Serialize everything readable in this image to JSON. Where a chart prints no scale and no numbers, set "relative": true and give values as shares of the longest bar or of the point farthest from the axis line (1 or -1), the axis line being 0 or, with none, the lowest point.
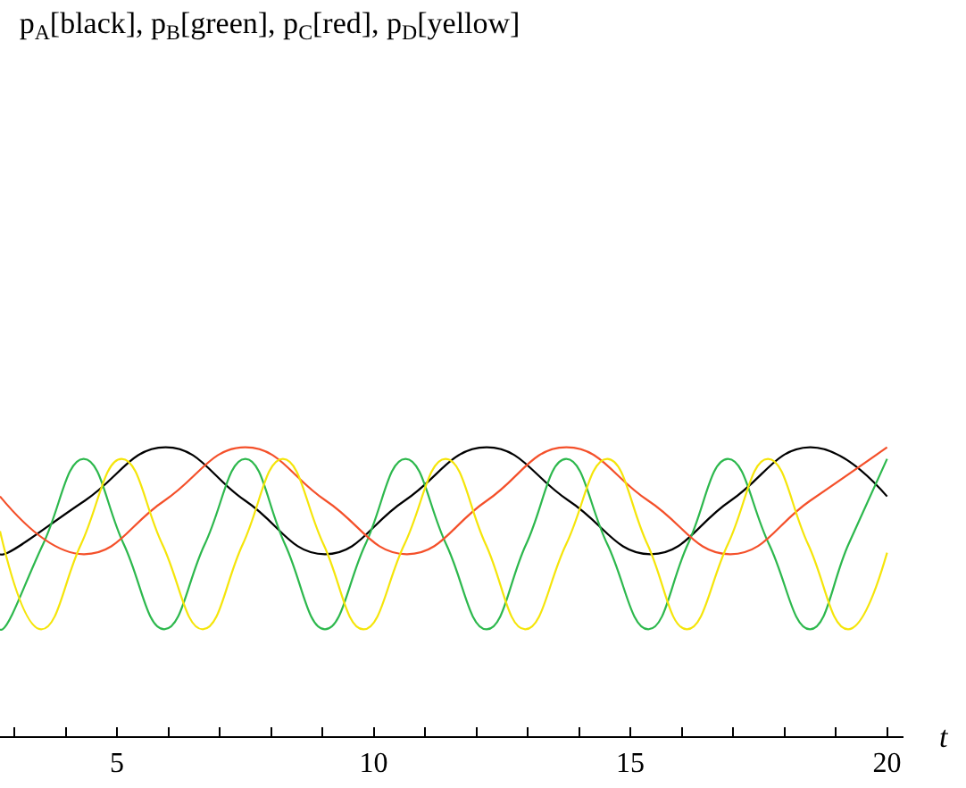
{
  "chart_data": {
    "type": "line",
    "title": "p$_{A}$[black], p$_{B}$[green], p$_{C}$[red], p$_{D}$[yellow]",
    "xlabel": "t",
    "relative": true,
    "xlim": [
      2.72,
      20.32
    ],
    "xticks": [
      {
        "value": 3,
        "label": null
      },
      {
        "value": 4,
        "label": null
      },
      5,
      {
        "value": 6,
        "label": null
      },
      {
        "value": 7,
        "label": null
      },
      {
        "value": 8,
        "label": null
      },
      {
        "value": 9,
        "label": null
      },
      10,
      {
        "value": 11,
        "label": null
      },
      {
        "value": 12,
        "label": null
      },
      {
        "value": 13,
        "label": null
      },
      {
        "value": 14,
        "label": null
      },
      15,
      {
        "value": 16,
        "label": null
      },
      {
        "value": 17,
        "label": null
      },
      {
        "value": 18,
        "label": null
      },
      {
        "value": 19,
        "label": null
      },
      20
    ],
    "tick_labels": "x",
    "marker": "none",
    "line_style": "solid",
    "series": [
      {
        "color": "#000000",
        "x": [
          2.72,
          2.8,
          4.37,
          5.95,
          7.5,
          9.05,
          10.6,
          12.2,
          13.8,
          15.4,
          16.95,
          18.5,
          20
        ],
        "values": [
          0.63,
          0.63,
          0.815,
          1.0,
          0.815,
          0.63,
          0.815,
          1.0,
          0.815,
          0.63,
          0.815,
          1.0,
          0.83
        ]
      },
      {
        "color": "#2db84d",
        "x": [
          2.72,
          2.77,
          3.56,
          4.35,
          5.13,
          5.92,
          6.71,
          7.5,
          8.27,
          9.05,
          9.84,
          10.62,
          11.41,
          12.2,
          12.97,
          13.75,
          14.55,
          15.35,
          16.12,
          16.9,
          17.7,
          18.5,
          19.25,
          20
        ],
        "values": [
          0.37,
          0.37,
          0.665,
          0.96,
          0.665,
          0.37,
          0.665,
          0.96,
          0.665,
          0.37,
          0.665,
          0.96,
          0.665,
          0.37,
          0.665,
          0.96,
          0.665,
          0.37,
          0.665,
          0.96,
          0.665,
          0.37,
          0.665,
          0.96
        ]
      },
      {
        "color": "#f4502a",
        "x": [
          2.72,
          4.35,
          5.92,
          7.5,
          9.07,
          10.65,
          12.2,
          13.75,
          15.35,
          16.95,
          18.5,
          20
        ],
        "values": [
          0.83,
          0.63,
          0.815,
          1.0,
          0.815,
          0.63,
          0.815,
          1.0,
          0.815,
          0.63,
          0.815,
          1.0
        ]
      },
      {
        "color": "#f5e50a",
        "x": [
          2.72,
          3.52,
          4.3,
          5.09,
          5.88,
          6.67,
          7.45,
          8.23,
          9.02,
          9.8,
          10.6,
          11.4,
          12.18,
          12.95,
          13.75,
          14.55,
          15.33,
          16.1,
          16.9,
          17.68,
          18.46,
          19.24,
          20
        ],
        "values": [
          0.71,
          0.37,
          0.665,
          0.96,
          0.665,
          0.37,
          0.665,
          0.96,
          0.665,
          0.37,
          0.665,
          0.96,
          0.665,
          0.37,
          0.665,
          0.96,
          0.665,
          0.37,
          0.665,
          0.96,
          0.665,
          0.37,
          0.635
        ]
      }
    ]
  }
}
